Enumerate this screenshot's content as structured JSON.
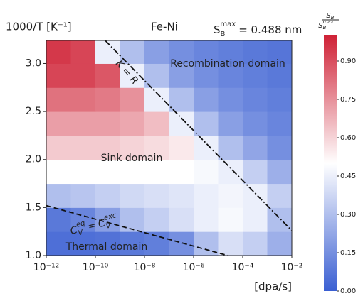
{
  "chart_data": {
    "type": "heatmap",
    "title": "Fe-Ni",
    "y_label": "1000/T [K⁻¹]",
    "x_label": "[dpa/s]",
    "annotation": {
      "symbol": "S",
      "sub": "B",
      "sup": "max",
      "text": "= 0.488 nm"
    },
    "colorbar_label": {
      "num": "S",
      "num_sub": "B",
      "den": "S",
      "den_sub": "B",
      "den_sup": "max"
    },
    "regions": [
      "Recombination domain",
      "Sink domain",
      "Thermal domain"
    ],
    "xscale": "log",
    "xlim": [
      1e-12,
      0.01
    ],
    "ylim": [
      1.0,
      3.24
    ],
    "xticks": [
      {
        "value": 1e-12,
        "label": "10⁻¹²"
      },
      {
        "value": 1e-10,
        "label": "10⁻¹⁰"
      },
      {
        "value": 1e-08,
        "label": "10⁻⁸"
      },
      {
        "value": 1e-06,
        "label": "10⁻⁶"
      },
      {
        "value": 0.0001,
        "label": "10⁻⁴"
      },
      {
        "value": 0.01,
        "label": "10⁻²"
      }
    ],
    "yticks": [
      {
        "value": 1.0,
        "label": "1.0"
      },
      1.5,
      {
        "value": 2.0,
        "label": "2.0"
      },
      2.5,
      {
        "value": 3.0,
        "label": "3.0"
      }
    ],
    "x_edges": [
      1e-12,
      1e-11,
      1e-10,
      1e-09,
      1e-08,
      1e-07,
      1e-06,
      1e-05,
      0.0001,
      0.001,
      0.01
    ],
    "y_edges": [
      1.0,
      1.25,
      1.5,
      1.75,
      2.0,
      2.25,
      2.5,
      2.75,
      3.0,
      3.24
    ],
    "z": [
      [
        0.05,
        0.05,
        0.06,
        0.08,
        0.1,
        0.15,
        0.3,
        0.4,
        0.35,
        0.25
      ],
      [
        0.08,
        0.12,
        0.2,
        0.3,
        0.35,
        0.4,
        0.45,
        0.48,
        0.45,
        0.3
      ],
      [
        0.3,
        0.32,
        0.35,
        0.38,
        0.4,
        0.42,
        0.45,
        0.47,
        0.45,
        0.35
      ],
      [
        0.5,
        0.5,
        0.5,
        0.5,
        0.5,
        0.5,
        0.48,
        0.45,
        0.35,
        0.25
      ],
      [
        0.62,
        0.62,
        0.62,
        0.6,
        0.58,
        0.55,
        0.45,
        0.3,
        0.22,
        0.15
      ],
      [
        0.72,
        0.72,
        0.72,
        0.7,
        0.65,
        0.45,
        0.3,
        0.2,
        0.15,
        0.12
      ],
      [
        0.82,
        0.82,
        0.8,
        0.75,
        0.45,
        0.3,
        0.2,
        0.15,
        0.12,
        0.1
      ],
      [
        0.92,
        0.92,
        0.88,
        0.45,
        0.3,
        0.2,
        0.15,
        0.12,
        0.1,
        0.08
      ],
      [
        0.95,
        0.92,
        0.45,
        0.3,
        0.2,
        0.15,
        0.12,
        0.1,
        0.08,
        0.07
      ]
    ],
    "clim": [
      0,
      1
    ],
    "colors": [
      "#3a5fd2",
      "#ffffff",
      "#cf2236"
    ],
    "cticks": [
      {
        "value": 0,
        "label": "0.00"
      },
      0.15,
      {
        "value": 0.3,
        "label": "0.30"
      },
      0.45,
      {
        "value": 0.6,
        "label": "0.60"
      },
      0.75,
      {
        "value": 0.9,
        "label": "0.90"
      }
    ],
    "lines": [
      {
        "label": "K = R",
        "style": "dashdot",
        "x": [
          2.5e-10,
          0.01
        ],
        "y": [
          3.24,
          1.26
        ]
      },
      {
        "label": {
          "l": "C",
          "l_sub": "V",
          "l_sup": "eq",
          "eq": "=",
          "r": "C",
          "r_sub": "V",
          "r_sup": "exc"
        },
        "style": "dashed",
        "x": [
          1e-12,
          2.5e-05
        ],
        "y": [
          1.52,
          1.0
        ]
      }
    ]
  }
}
